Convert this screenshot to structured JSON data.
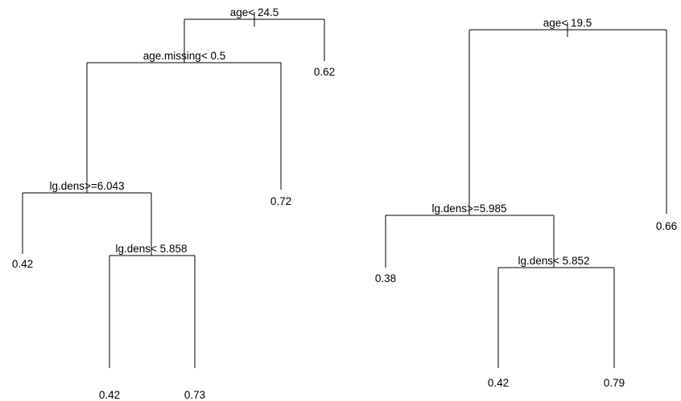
{
  "trees": [
    {
      "splits": [
        {
          "id": "root",
          "label": "age< 24.5"
        },
        {
          "id": "s1",
          "label": "age.missing< 0.5"
        },
        {
          "id": "s2",
          "label": "lg.dens>=6.043"
        },
        {
          "id": "s3",
          "label": "lg.dens< 5.858"
        }
      ],
      "leaves": [
        {
          "id": "l1",
          "label": "0.62"
        },
        {
          "id": "l2",
          "label": "0.72"
        },
        {
          "id": "l3",
          "label": "0.42"
        },
        {
          "id": "l4",
          "label": "0.42"
        },
        {
          "id": "l5",
          "label": "0.73"
        }
      ]
    },
    {
      "splits": [
        {
          "id": "root",
          "label": "age< 19.5"
        },
        {
          "id": "s1",
          "label": "lg.dens>=5.985"
        },
        {
          "id": "s2",
          "label": "lg.dens< 5.852"
        }
      ],
      "leaves": [
        {
          "id": "l1",
          "label": "0.66"
        },
        {
          "id": "l2",
          "label": "0.38"
        },
        {
          "id": "l3",
          "label": "0.42"
        },
        {
          "id": "l4",
          "label": "0.79"
        }
      ]
    }
  ]
}
